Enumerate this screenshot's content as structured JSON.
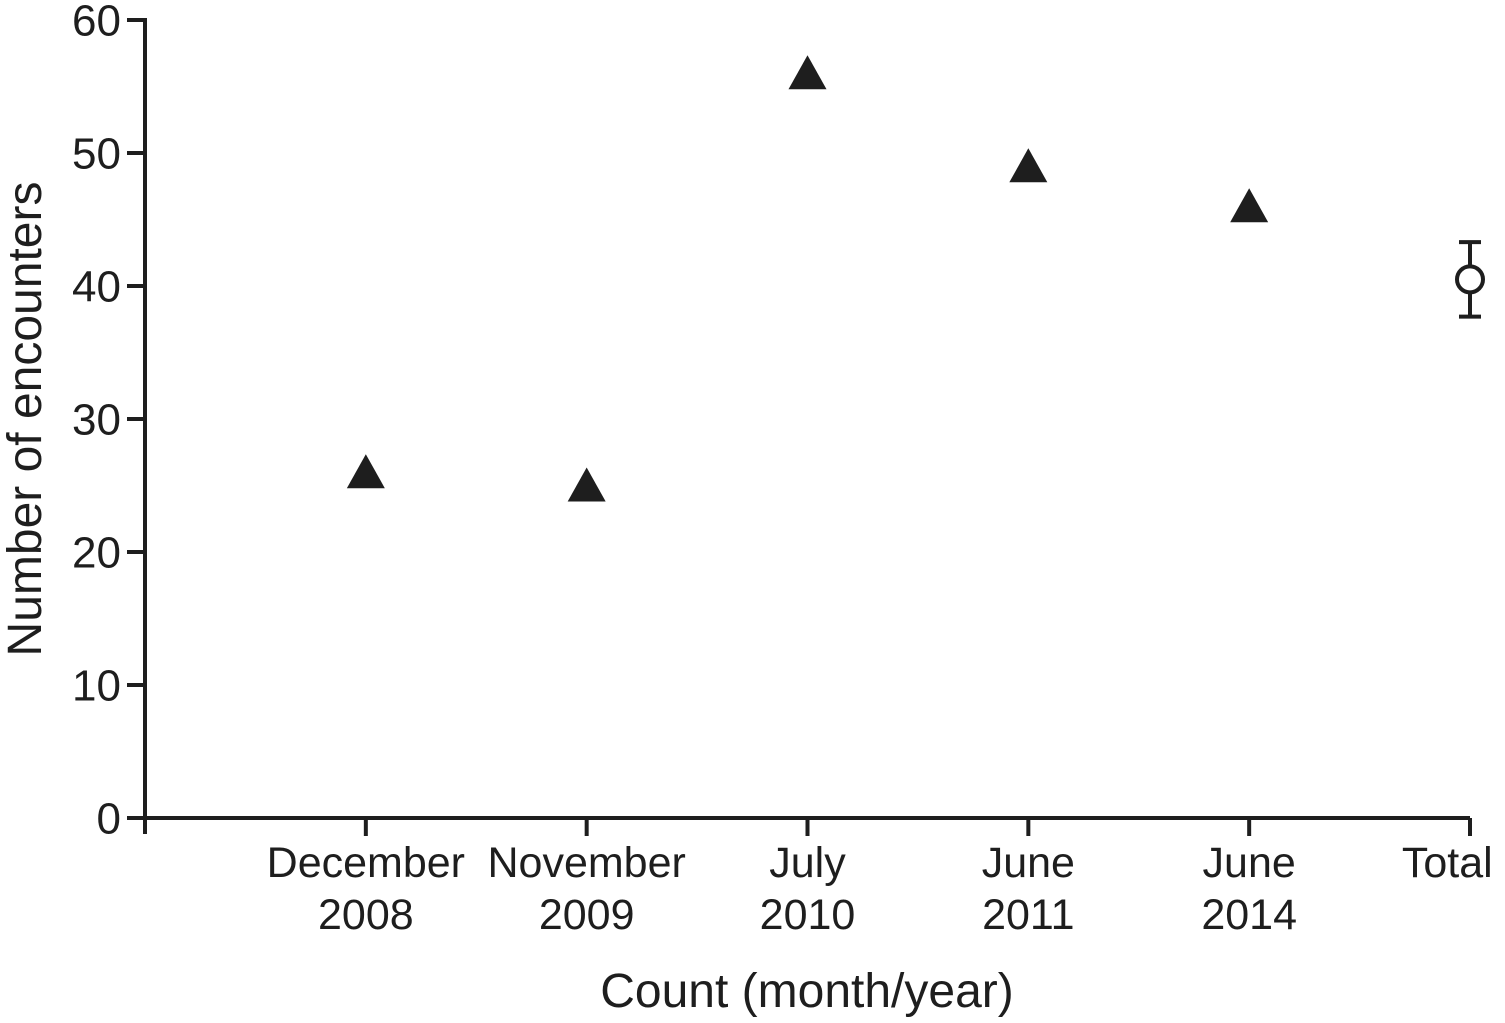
{
  "figure": {
    "background_color": "#ffffff",
    "ink_color": "#1e1e1e"
  },
  "chart_data": {
    "type": "scatter",
    "title": "",
    "xlabel": "Count (month/year)",
    "ylabel": "Number of encounters",
    "ylim": [
      0,
      60
    ],
    "yticks": [
      0,
      10,
      20,
      30,
      40,
      50,
      60
    ],
    "grid": false,
    "legend": "none",
    "ink_color": "#1e1e1e",
    "categories": [
      "December 2008",
      "November 2009",
      "July 2010",
      "June 2011",
      "June 2014",
      "Total"
    ],
    "category_label_lines": [
      [
        "December",
        "2008"
      ],
      [
        "November",
        "2009"
      ],
      [
        "July",
        "2010"
      ],
      [
        "June",
        "2011"
      ],
      [
        "June",
        "2014"
      ],
      [
        "Total"
      ]
    ],
    "points": [
      {
        "category": "December 2008",
        "value": 26,
        "marker": "filled-triangle"
      },
      {
        "category": "November 2009",
        "value": 25,
        "marker": "filled-triangle"
      },
      {
        "category": "July 2010",
        "value": 56,
        "marker": "filled-triangle"
      },
      {
        "category": "June 2011",
        "value": 49,
        "marker": "filled-triangle"
      },
      {
        "category": "June 2014",
        "value": 46,
        "marker": "filled-triangle"
      },
      {
        "category": "Total",
        "value": 40.5,
        "marker": "open-circle",
        "error_low": 37.7,
        "error_high": 43.3
      }
    ]
  }
}
